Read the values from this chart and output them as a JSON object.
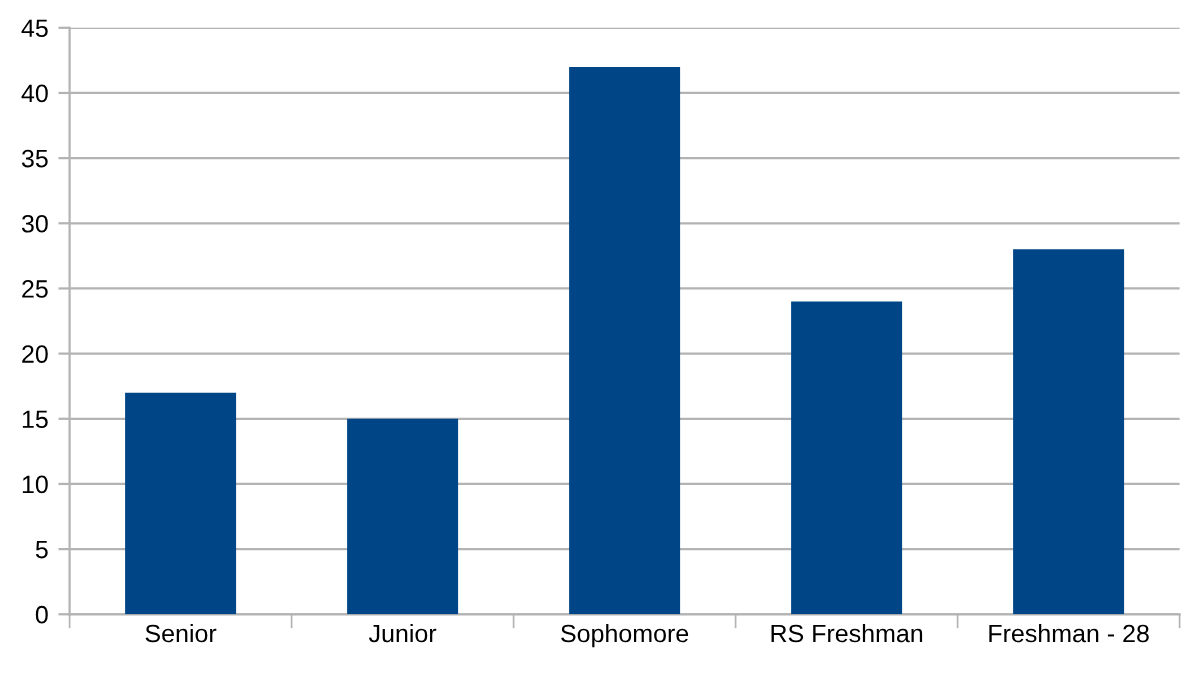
{
  "chart_data": {
    "type": "bar",
    "categories": [
      "Senior",
      "Junior",
      "Sophomore",
      "RS Freshman",
      "Freshman - 28"
    ],
    "values": [
      17,
      15,
      42,
      24,
      28
    ],
    "color": "#004586",
    "ylim": [
      0,
      45
    ],
    "yticks": [
      0,
      5,
      10,
      15,
      20,
      25,
      30,
      35,
      40,
      45
    ],
    "grid": "y"
  }
}
